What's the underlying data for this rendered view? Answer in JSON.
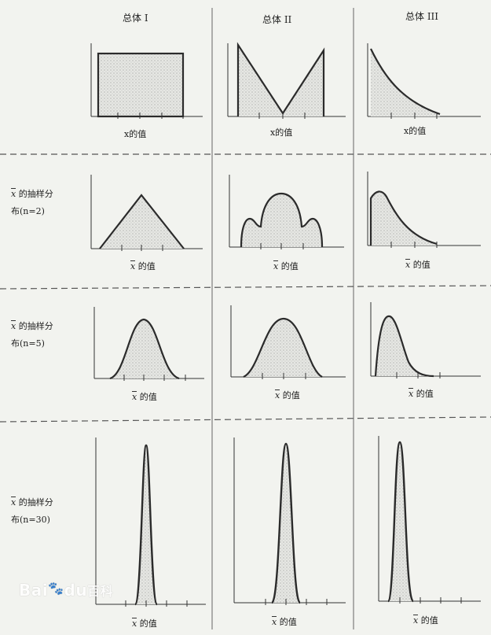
{
  "columns": [
    {
      "title": "总体 I"
    },
    {
      "title": "总体 II"
    },
    {
      "title": "总体 III"
    }
  ],
  "population_x_label": "x的值",
  "xbar_symbol": "x",
  "xbar_value_label": " 的值",
  "rows": [
    {
      "label_line1": " 的抽样分",
      "label_line2": "布(n=2)"
    },
    {
      "label_line1": " 的抽样分",
      "label_line2": "布(n=5)"
    },
    {
      "label_line1": " 的抽样分",
      "label_line2": "布(n=30)"
    }
  ],
  "watermark": {
    "text": "Bai",
    "paw": "du",
    "cn": "百科"
  },
  "colors": {
    "curve": "#2b2b2b",
    "fill": "#d9dad6",
    "divider": "#666666",
    "background": "#f2f3ef"
  }
}
